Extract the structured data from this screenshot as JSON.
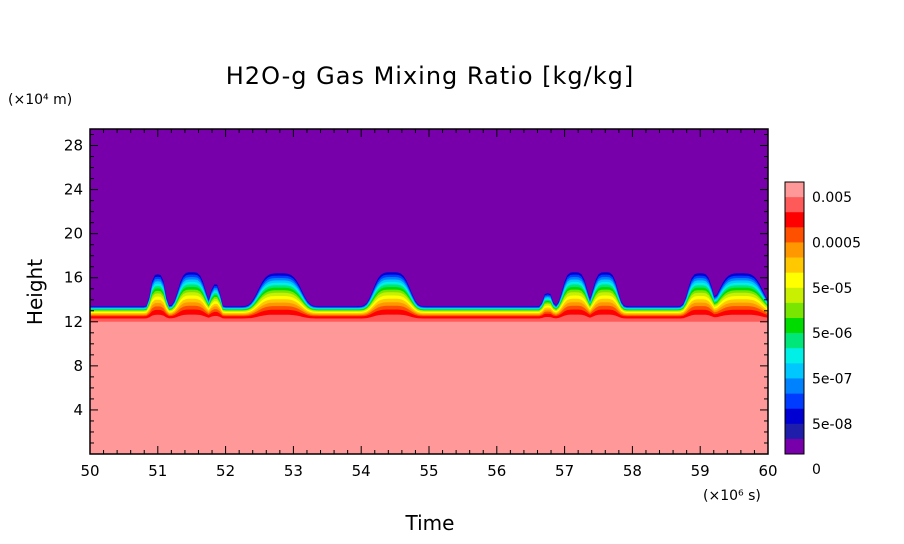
{
  "chart_data": {
    "type": "heatmap",
    "title": "H2O-g Gas Mixing Ratio [kg/kg]",
    "xlabel": "Time",
    "ylabel": "Height",
    "x_unit": "(×10⁶ s)",
    "y_unit": "(×10⁴ m)",
    "xlim": [
      50,
      60
    ],
    "ylim": [
      0,
      29.5
    ],
    "x_ticks": [
      "50",
      "51",
      "52",
      "53",
      "54",
      "55",
      "56",
      "57",
      "58",
      "59",
      "60"
    ],
    "y_ticks": [
      "4",
      "8",
      "12",
      "16",
      "20",
      "24",
      "28"
    ],
    "colorbar": {
      "labels": [
        "0.005",
        "0.0005",
        "5e-05",
        "5e-06",
        "5e-07",
        "5e-08",
        "0"
      ],
      "colors_top_to_bottom": [
        "#ff9999",
        "#ff5a5a",
        "#ff0000",
        "#ff5000",
        "#ff9800",
        "#ffc800",
        "#ffff00",
        "#c8f000",
        "#78e600",
        "#00dc00",
        "#00e678",
        "#00f0e8",
        "#00c8ff",
        "#0082ff",
        "#003cff",
        "#0000d2",
        "#1e1eaa",
        "#7800aa"
      ]
    },
    "levels_base_height": 11.5,
    "levels_note": "top of layer k above base height (x10^4 m) at flat state, shifted up by local bump",
    "band_tops_flat": [
      12.0,
      12.3,
      12.5,
      12.6,
      12.7,
      12.8,
      12.9,
      13.0,
      13.05,
      13.1,
      13.15,
      13.2,
      13.25,
      13.3,
      13.35,
      13.4
    ],
    "bumps": [
      {
        "center": 51.0,
        "width": 0.12,
        "height": 2.9
      },
      {
        "center": 51.5,
        "width": 0.22,
        "height": 3.1
      },
      {
        "center": 51.85,
        "width": 0.08,
        "height": 2.0
      },
      {
        "center": 52.8,
        "width": 0.35,
        "height": 3.0
      },
      {
        "center": 54.45,
        "width": 0.3,
        "height": 3.1
      },
      {
        "center": 56.75,
        "width": 0.08,
        "height": 1.2
      },
      {
        "center": 57.15,
        "width": 0.2,
        "height": 3.1
      },
      {
        "center": 57.6,
        "width": 0.2,
        "height": 3.1
      },
      {
        "center": 59.0,
        "width": 0.2,
        "height": 3.0
      },
      {
        "center": 59.6,
        "width": 0.35,
        "height": 3.0
      }
    ]
  }
}
